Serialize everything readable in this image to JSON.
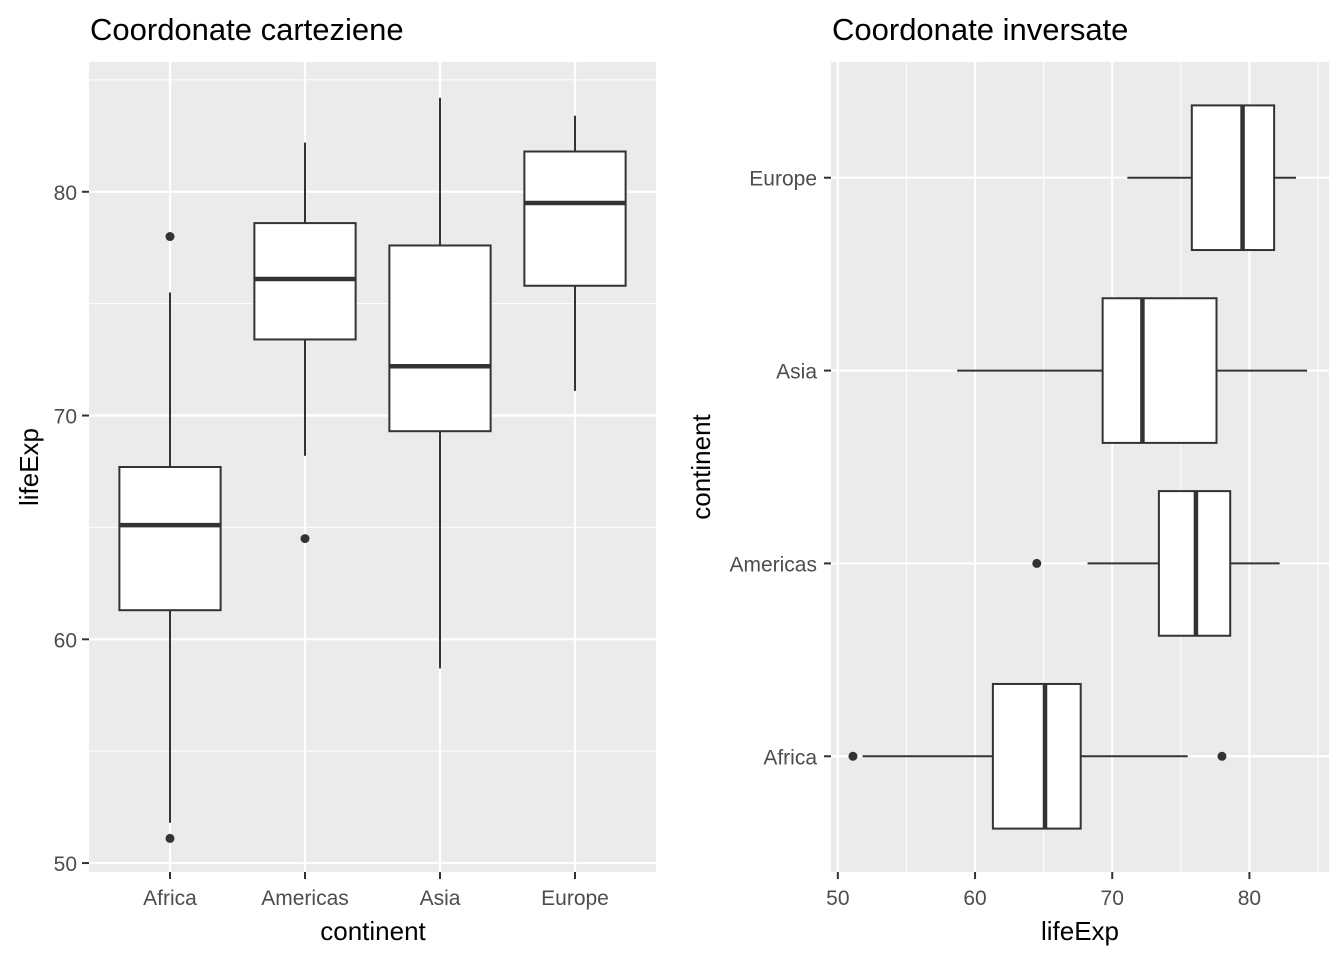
{
  "chart_data": [
    {
      "type": "boxplot",
      "orientation": "vertical",
      "title": "Coordonate carteziene",
      "xlabel": "continent",
      "ylabel": "lifeExp",
      "categories": [
        "Africa",
        "Americas",
        "Asia",
        "Europe"
      ],
      "ylim": [
        49.6,
        85.8
      ],
      "yticks": [
        50,
        60,
        70,
        80
      ],
      "ytick_labels": [
        "50",
        "60",
        "70",
        "80"
      ],
      "grid": true,
      "boxes": [
        {
          "category": "Africa",
          "lower_whisker": 51.8,
          "q1": 61.3,
          "median": 65.1,
          "q3": 67.7,
          "upper_whisker": 75.5,
          "outliers": [
            51.1,
            78.0
          ]
        },
        {
          "category": "Americas",
          "lower_whisker": 68.2,
          "q1": 73.4,
          "median": 76.1,
          "q3": 78.6,
          "upper_whisker": 82.2,
          "outliers": [
            64.5
          ]
        },
        {
          "category": "Asia",
          "lower_whisker": 58.7,
          "q1": 69.3,
          "median": 72.2,
          "q3": 77.6,
          "upper_whisker": 84.2,
          "outliers": []
        },
        {
          "category": "Europe",
          "lower_whisker": 71.1,
          "q1": 75.8,
          "median": 79.5,
          "q3": 81.8,
          "upper_whisker": 83.4,
          "outliers": []
        }
      ]
    },
    {
      "type": "boxplot",
      "orientation": "horizontal",
      "title": "Coordonate inversate",
      "xlabel": "lifeExp",
      "ylabel": "continent",
      "categories": [
        "Africa",
        "Americas",
        "Asia",
        "Europe"
      ],
      "xlim": [
        49.5,
        85.8
      ],
      "xticks": [
        50,
        60,
        70,
        80
      ],
      "xtick_labels": [
        "50",
        "60",
        "70",
        "80"
      ],
      "grid": true,
      "boxes": [
        {
          "category": "Africa",
          "lower_whisker": 51.8,
          "q1": 61.3,
          "median": 65.1,
          "q3": 67.7,
          "upper_whisker": 75.5,
          "outliers": [
            51.1,
            78.0
          ]
        },
        {
          "category": "Americas",
          "lower_whisker": 68.2,
          "q1": 73.4,
          "median": 76.1,
          "q3": 78.6,
          "upper_whisker": 82.2,
          "outliers": [
            64.5
          ]
        },
        {
          "category": "Asia",
          "lower_whisker": 58.7,
          "q1": 69.3,
          "median": 72.2,
          "q3": 77.6,
          "upper_whisker": 84.2,
          "outliers": []
        },
        {
          "category": "Europe",
          "lower_whisker": 71.1,
          "q1": 75.8,
          "median": 79.5,
          "q3": 81.8,
          "upper_whisker": 83.4,
          "outliers": []
        }
      ]
    }
  ],
  "colors": {
    "panel_bg": "#ebebeb",
    "grid": "#ffffff",
    "box_line": "#333333",
    "box_fill": "#ffffff",
    "tick_text": "#4d4d4d"
  }
}
